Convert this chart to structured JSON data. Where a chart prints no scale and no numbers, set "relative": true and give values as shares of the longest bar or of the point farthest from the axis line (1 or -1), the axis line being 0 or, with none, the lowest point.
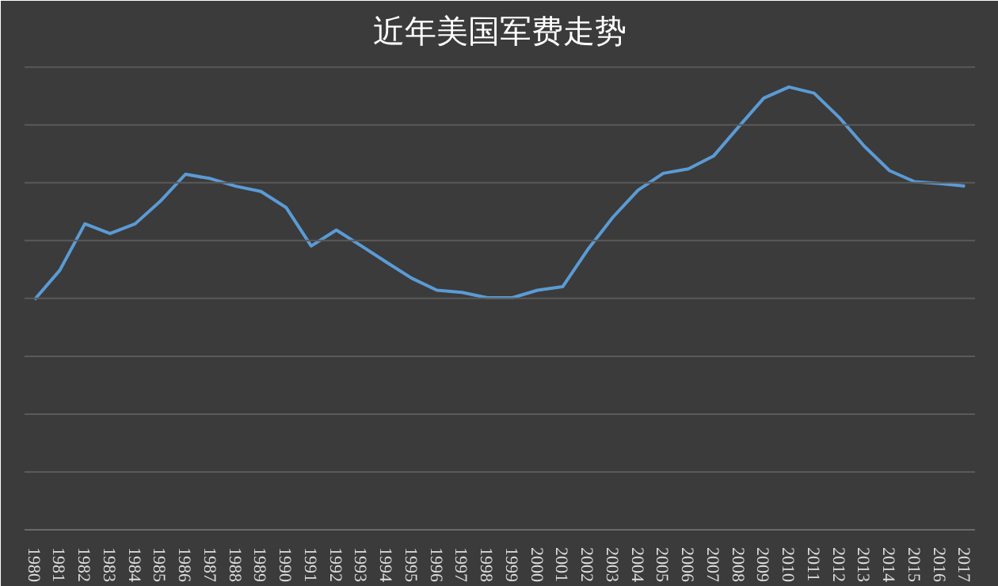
{
  "chart_data": {
    "type": "line",
    "title": "近年美国军费走势",
    "relative": true,
    "grid": "y",
    "marker": "none",
    "line_style": "solid",
    "categories": [
      "1980",
      "1981",
      "1982",
      "1983",
      "1984",
      "1985",
      "1986",
      "1987",
      "1988",
      "1989",
      "1990",
      "1991",
      "1992",
      "1993",
      "1994",
      "1995",
      "1996",
      "1997",
      "1998",
      "1999",
      "2000",
      "2001",
      "2002",
      "2003",
      "2004",
      "2005",
      "2006",
      "2007",
      "2008",
      "2009",
      "2010",
      "2011",
      "2012",
      "2013",
      "2014",
      "2015",
      "2016",
      "2017"
    ],
    "series": [
      {
        "color": "#5b9bd5",
        "values": [
          0.52,
          0.586,
          0.691,
          0.669,
          0.691,
          0.742,
          0.803,
          0.793,
          0.776,
          0.764,
          0.728,
          0.641,
          0.677,
          0.641,
          0.604,
          0.568,
          0.541,
          0.536,
          0.524,
          0.524,
          0.541,
          0.549,
          0.633,
          0.706,
          0.767,
          0.805,
          0.815,
          0.844,
          0.91,
          0.975,
          1.0,
          0.986,
          0.931,
          0.866,
          0.811,
          0.786,
          0.782,
          0.776
        ]
      }
    ]
  }
}
